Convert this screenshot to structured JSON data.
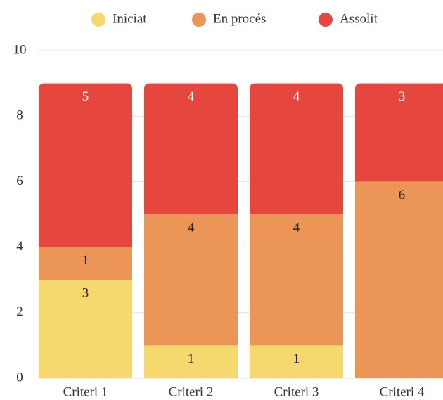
{
  "chart_data": {
    "type": "stacked_bar",
    "categories": [
      "Criteri 1",
      "Criteri 2",
      "Criteri 3",
      "Criteri 4"
    ],
    "series": [
      {
        "name": "Iniciat",
        "color": "#f5d86e",
        "values": [
          3,
          1,
          1,
          0
        ]
      },
      {
        "name": "En procés",
        "color": "#eb9656",
        "values": [
          1,
          4,
          4,
          6
        ]
      },
      {
        "name": "Assolit",
        "color": "#e5463d",
        "values": [
          5,
          4,
          4,
          3
        ]
      }
    ],
    "ylim": [
      0,
      10
    ],
    "yticks": [
      0,
      2,
      4,
      6,
      8,
      10
    ],
    "grid": true,
    "legend": "top"
  }
}
